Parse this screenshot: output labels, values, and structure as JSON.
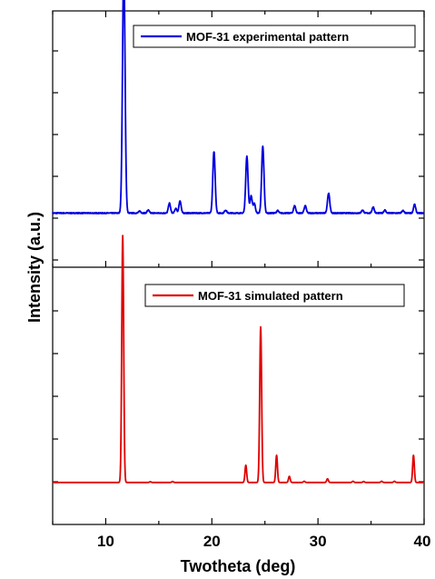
{
  "chart_data": [
    {
      "type": "line",
      "panel": "top",
      "xlabel": "Twotheta (deg)",
      "ylabel": "Intensity (a.u.)",
      "xlim": [
        5,
        40
      ],
      "xticks": [
        10,
        20,
        30,
        40
      ],
      "y_tick_labels": "none",
      "legend_position": "top-right",
      "series": [
        {
          "name": "MOF-31 experimental pattern",
          "color": "#0000e0",
          "baseline": 0.22,
          "noise": 0.004,
          "peaks": [
            {
              "x": 11.7,
              "height": 1.0,
              "width": 0.12
            },
            {
              "x": 13.2,
              "height": 0.008,
              "width": 0.1
            },
            {
              "x": 14.0,
              "height": 0.012,
              "width": 0.1
            },
            {
              "x": 16.0,
              "height": 0.04,
              "width": 0.1
            },
            {
              "x": 16.6,
              "height": 0.018,
              "width": 0.1
            },
            {
              "x": 17.0,
              "height": 0.05,
              "width": 0.1
            },
            {
              "x": 20.2,
              "height": 0.25,
              "width": 0.11
            },
            {
              "x": 21.3,
              "height": 0.012,
              "width": 0.1
            },
            {
              "x": 23.3,
              "height": 0.23,
              "width": 0.11
            },
            {
              "x": 23.7,
              "height": 0.07,
              "width": 0.1
            },
            {
              "x": 24.0,
              "height": 0.04,
              "width": 0.1
            },
            {
              "x": 24.8,
              "height": 0.27,
              "width": 0.11
            },
            {
              "x": 26.2,
              "height": 0.01,
              "width": 0.1
            },
            {
              "x": 27.8,
              "height": 0.03,
              "width": 0.1
            },
            {
              "x": 28.8,
              "height": 0.03,
              "width": 0.1
            },
            {
              "x": 31.0,
              "height": 0.08,
              "width": 0.11
            },
            {
              "x": 34.2,
              "height": 0.012,
              "width": 0.1
            },
            {
              "x": 35.2,
              "height": 0.025,
              "width": 0.1
            },
            {
              "x": 36.3,
              "height": 0.012,
              "width": 0.1
            },
            {
              "x": 38.0,
              "height": 0.01,
              "width": 0.1
            },
            {
              "x": 39.1,
              "height": 0.035,
              "width": 0.1
            }
          ]
        }
      ]
    },
    {
      "type": "line",
      "panel": "bottom",
      "xlabel": "Twotheta (deg)",
      "ylabel": "Intensity (a.u.)",
      "xlim": [
        5,
        40
      ],
      "xticks": [
        10,
        20,
        30,
        40
      ],
      "y_tick_labels": "none",
      "legend_position": "top-right",
      "series": [
        {
          "name": "MOF-31 simulated pattern",
          "color": "#e00000",
          "baseline": 0.17,
          "noise": 0.0,
          "peaks": [
            {
              "x": 11.6,
              "height": 1.0,
              "width": 0.09
            },
            {
              "x": 14.2,
              "height": 0.003,
              "width": 0.08
            },
            {
              "x": 16.3,
              "height": 0.004,
              "width": 0.08
            },
            {
              "x": 23.2,
              "height": 0.07,
              "width": 0.08
            },
            {
              "x": 24.6,
              "height": 0.63,
              "width": 0.09
            },
            {
              "x": 26.1,
              "height": 0.11,
              "width": 0.08
            },
            {
              "x": 27.3,
              "height": 0.025,
              "width": 0.08
            },
            {
              "x": 28.7,
              "height": 0.005,
              "width": 0.08
            },
            {
              "x": 30.9,
              "height": 0.015,
              "width": 0.08
            },
            {
              "x": 33.3,
              "height": 0.005,
              "width": 0.08
            },
            {
              "x": 34.3,
              "height": 0.004,
              "width": 0.08
            },
            {
              "x": 36.0,
              "height": 0.005,
              "width": 0.08
            },
            {
              "x": 37.2,
              "height": 0.005,
              "width": 0.08
            },
            {
              "x": 39.0,
              "height": 0.11,
              "width": 0.08
            }
          ]
        }
      ]
    }
  ]
}
